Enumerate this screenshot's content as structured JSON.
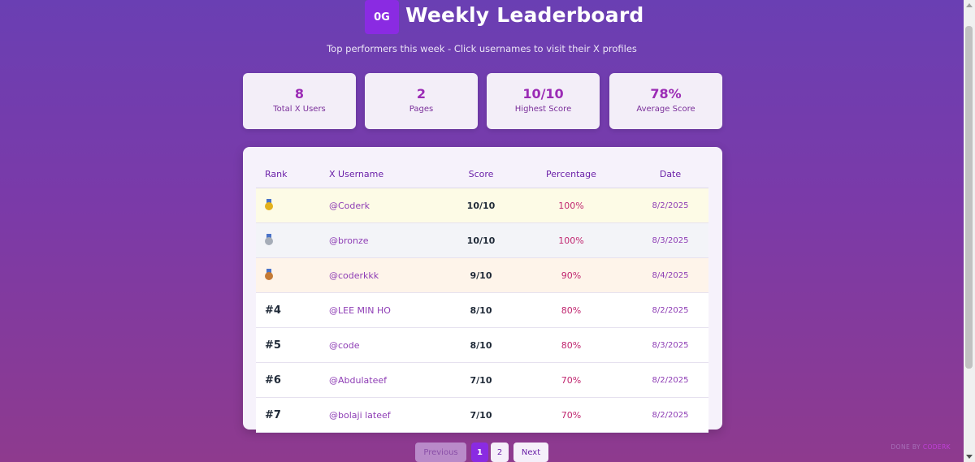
{
  "header": {
    "logo_text": "0G",
    "title": "Weekly Leaderboard",
    "subtitle": "Top performers this week - Click usernames to visit their X profiles"
  },
  "stats": [
    {
      "value": "8",
      "label": "Total X Users"
    },
    {
      "value": "2",
      "label": "Pages"
    },
    {
      "value": "10/10",
      "label": "Highest Score"
    },
    {
      "value": "78%",
      "label": "Average Score"
    }
  ],
  "table": {
    "columns": [
      "Rank",
      "X Username",
      "Score",
      "Percentage",
      "Date"
    ],
    "rows": [
      {
        "rank": "",
        "medal": "gold-medal-icon",
        "username": "@Coderk",
        "score": "10/10",
        "percentage": "100%",
        "date": "8/2/2025"
      },
      {
        "rank": "",
        "medal": "silver-medal-icon",
        "username": "@bronze",
        "score": "10/10",
        "percentage": "100%",
        "date": "8/3/2025"
      },
      {
        "rank": "",
        "medal": "bronze-medal-icon",
        "username": "@coderkkk",
        "score": "9/10",
        "percentage": "90%",
        "date": "8/4/2025"
      },
      {
        "rank": "#4",
        "username": "@LEE MIN HO",
        "score": "8/10",
        "percentage": "80%",
        "date": "8/2/2025"
      },
      {
        "rank": "#5",
        "username": "@code",
        "score": "8/10",
        "percentage": "80%",
        "date": "8/3/2025"
      },
      {
        "rank": "#6",
        "username": "@Abdulateef",
        "score": "7/10",
        "percentage": "70%",
        "date": "8/2/2025"
      },
      {
        "rank": "#7",
        "username": "@bolaji lateef",
        "score": "7/10",
        "percentage": "70%",
        "date": "8/2/2025"
      }
    ]
  },
  "pagination": {
    "previous_label": "Previous",
    "pages": [
      "1",
      "2"
    ],
    "current_page": "1",
    "next_label": "Next"
  },
  "footer": {
    "credit_prefix": "DONE BY",
    "credit_name": "CODERK"
  },
  "colors": {
    "accent": "#8a2be2",
    "background_top": "#6a3fb3",
    "background_bottom": "#8e3a8e",
    "percentage_text": "#c0266f"
  }
}
